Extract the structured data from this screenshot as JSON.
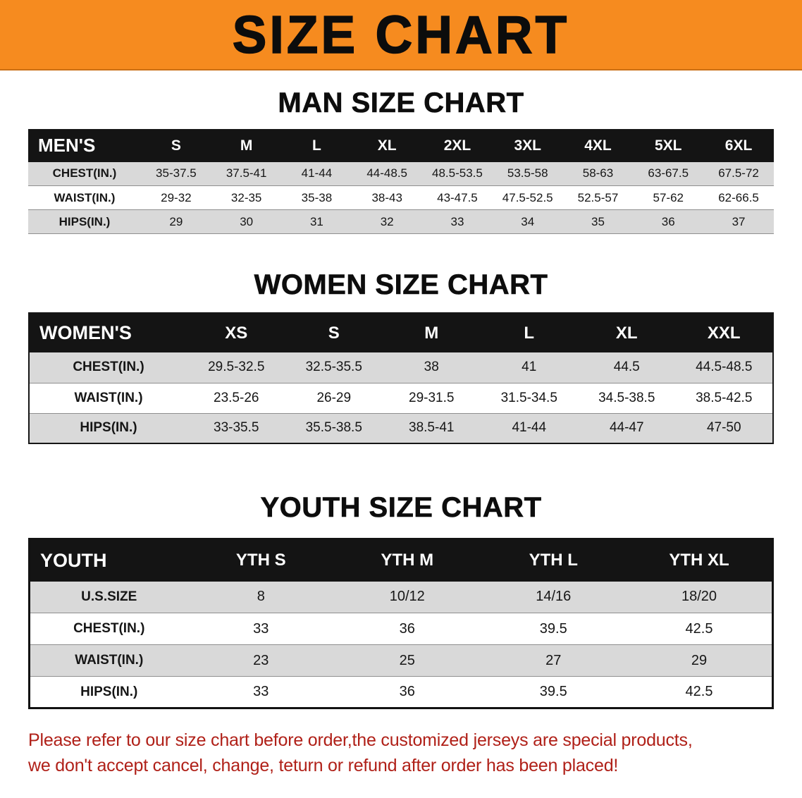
{
  "banner": {
    "title": "SIZE CHART"
  },
  "sections": {
    "men": {
      "heading": "MAN SIZE CHART",
      "table": {
        "header": [
          "MEN'S",
          "S",
          "M",
          "L",
          "XL",
          "2XL",
          "3XL",
          "4XL",
          "5XL",
          "6XL"
        ],
        "rows": [
          [
            "CHEST(IN.)",
            "35-37.5",
            "37.5-41",
            "41-44",
            "44-48.5",
            "48.5-53.5",
            "53.5-58",
            "58-63",
            "63-67.5",
            "67.5-72"
          ],
          [
            "WAIST(IN.)",
            "29-32",
            "32-35",
            "35-38",
            "38-43",
            "43-47.5",
            "47.5-52.5",
            "52.5-57",
            "57-62",
            "62-66.5"
          ],
          [
            "HIPS(IN.)",
            "29",
            "30",
            "31",
            "32",
            "33",
            "34",
            "35",
            "36",
            "37"
          ]
        ]
      }
    },
    "women": {
      "heading": "WOMEN SIZE CHART",
      "table": {
        "header": [
          "WOMEN'S",
          "XS",
          "S",
          "M",
          "L",
          "XL",
          "XXL"
        ],
        "rows": [
          [
            "CHEST(IN.)",
            "29.5-32.5",
            "32.5-35.5",
            "38",
            "41",
            "44.5",
            "44.5-48.5"
          ],
          [
            "WAIST(IN.)",
            "23.5-26",
            "26-29",
            "29-31.5",
            "31.5-34.5",
            "34.5-38.5",
            "38.5-42.5"
          ],
          [
            "HIPS(IN.)",
            "33-35.5",
            "35.5-38.5",
            "38.5-41",
            "41-44",
            "44-47",
            "47-50"
          ]
        ]
      }
    },
    "youth": {
      "heading": "YOUTH SIZE CHART",
      "table": {
        "header": [
          "YOUTH",
          "YTH S",
          "YTH M",
          "YTH L",
          "YTH XL"
        ],
        "rows": [
          [
            "U.S.SIZE",
            "8",
            "10/12",
            "14/16",
            "18/20"
          ],
          [
            "CHEST(IN.)",
            "33",
            "36",
            "39.5",
            "42.5"
          ],
          [
            "WAIST(IN.)",
            "23",
            "25",
            "27",
            "29"
          ],
          [
            "HIPS(IN.)",
            "33",
            "36",
            "39.5",
            "42.5"
          ]
        ]
      }
    }
  },
  "disclaimer": {
    "line1": "Please refer to our size chart before order,the customized jerseys are special products,",
    "line2": "we don't accept cancel, change, teturn or refund after order has been placed!"
  },
  "colors": {
    "banner_bg": "#f68b1f",
    "table_header_bg": "#141414",
    "stripe": "#d9d9d9",
    "disclaimer_red": "#b02018"
  }
}
